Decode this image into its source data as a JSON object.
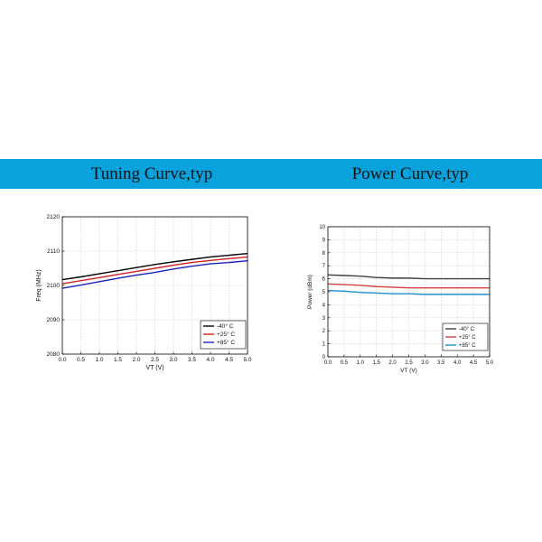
{
  "colors": {
    "banner": "#0aa2dc",
    "series": [
      "#000000",
      "#d62020",
      "#2020c0"
    ],
    "series_power": [
      "#404040",
      "#d84040",
      "#2090d0"
    ]
  },
  "banner": {
    "left_title": "Tuning Curve,typ",
    "right_title": "Power Curve,typ"
  },
  "chart_data": [
    {
      "type": "line",
      "title": "",
      "xlabel": "VT (V)",
      "ylabel": "Freq (MHz)",
      "xlim": [
        0.0,
        5.0
      ],
      "ylim": [
        2080,
        2120
      ],
      "xticks": [
        "0.0",
        "0.5",
        "1.0",
        "1.5",
        "2.0",
        "2.5",
        "3.0",
        "3.5",
        "4.0",
        "4.5",
        "5.0"
      ],
      "yticks": [
        "2080",
        "2090",
        "2100",
        "2110",
        "2120"
      ],
      "grid": true,
      "legend": "bottom-right",
      "x": [
        0.0,
        0.5,
        1.0,
        1.5,
        2.0,
        2.5,
        3.0,
        3.5,
        4.0,
        4.5,
        5.0
      ],
      "series": [
        {
          "name": "-40° C",
          "values": [
            2101.7,
            2102.5,
            2103.4,
            2104.3,
            2105.2,
            2106.1,
            2106.9,
            2107.6,
            2108.3,
            2108.8,
            2109.3
          ]
        },
        {
          "name": "+25° C",
          "values": [
            2100.5,
            2101.4,
            2102.3,
            2103.2,
            2104.1,
            2105.0,
            2105.9,
            2106.7,
            2107.3,
            2107.8,
            2108.3
          ]
        },
        {
          "name": "+85° C",
          "values": [
            2099.2,
            2100.1,
            2101.1,
            2102.1,
            2103.0,
            2103.8,
            2104.8,
            2105.6,
            2106.3,
            2106.7,
            2107.2
          ]
        }
      ]
    },
    {
      "type": "line",
      "title": "",
      "xlabel": "VT (V)",
      "ylabel": "Power (dBm)",
      "xlim": [
        0.0,
        5.0
      ],
      "ylim": [
        0,
        10
      ],
      "xticks": [
        "0.0",
        "0.5",
        "1.0",
        "1.5",
        "2.0",
        "2.5",
        "3.0",
        "3.5",
        "4.0",
        "4.5",
        "5.0"
      ],
      "yticks": [
        "0",
        "1",
        "2",
        "3",
        "4",
        "5",
        "6",
        "7",
        "8",
        "9",
        "10"
      ],
      "grid": true,
      "legend": "bottom-right",
      "x": [
        0.0,
        0.5,
        1.0,
        1.5,
        2.0,
        2.5,
        3.0,
        3.5,
        4.0,
        4.5,
        5.0
      ],
      "series": [
        {
          "name": "-40° C",
          "values": [
            6.3,
            6.25,
            6.2,
            6.1,
            6.05,
            6.05,
            6.0,
            6.0,
            6.0,
            6.0,
            6.0
          ]
        },
        {
          "name": "+25° C",
          "values": [
            5.6,
            5.55,
            5.5,
            5.4,
            5.35,
            5.3,
            5.3,
            5.3,
            5.3,
            5.3,
            5.3
          ]
        },
        {
          "name": "+85° C",
          "values": [
            5.1,
            5.05,
            4.95,
            4.9,
            4.85,
            4.85,
            4.8,
            4.8,
            4.8,
            4.8,
            4.8
          ]
        }
      ]
    }
  ]
}
